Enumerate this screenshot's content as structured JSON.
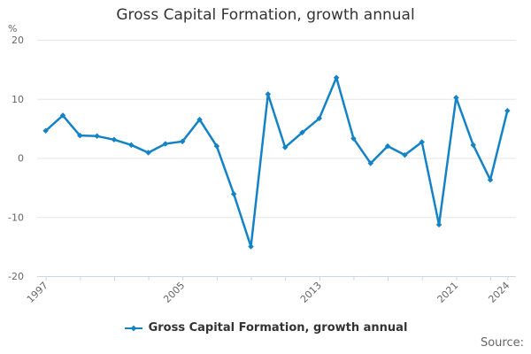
{
  "chart_data": {
    "type": "line",
    "title": "Gross Capital Formation, growth annual",
    "subtitle": "",
    "xlabel": "",
    "ylabel": "%",
    "series_name": "Gross Capital Formation, growth annual",
    "x": [
      1997,
      1998,
      1999,
      2000,
      2001,
      2002,
      2003,
      2004,
      2005,
      2006,
      2007,
      2008,
      2009,
      2010,
      2011,
      2012,
      2013,
      2014,
      2015,
      2016,
      2017,
      2018,
      2019,
      2020,
      2021,
      2022,
      2023,
      2024
    ],
    "values": [
      4.6,
      7.2,
      3.8,
      3.7,
      3.1,
      2.2,
      0.9,
      2.4,
      2.8,
      6.5,
      2.0,
      -6.1,
      -15.0,
      10.8,
      1.8,
      4.3,
      6.7,
      13.6,
      3.3,
      -0.9,
      2.0,
      0.5,
      2.7,
      -11.3,
      10.2,
      2.2,
      -3.7,
      8.0
    ],
    "ylim": [
      -20,
      20
    ],
    "xlim": [
      1996.5,
      2024.5
    ],
    "y_ticks": [
      20,
      10,
      0,
      -10,
      -20
    ],
    "x_ticks": [
      1997,
      1999,
      2001,
      2003,
      2005,
      2007,
      2009,
      2011,
      2013,
      2015,
      2017,
      2019,
      2021,
      2023,
      2024
    ],
    "x_tick_labels": [
      "1997",
      "2005",
      "2013",
      "2021",
      "2024"
    ],
    "grid": true,
    "legend_position": "bottom-center",
    "marker": "diamond"
  },
  "legend": {
    "label": "Gross Capital Formation, growth annual"
  },
  "footer": {
    "source_label": "Source:"
  },
  "colors": {
    "line": "#1483c6",
    "grid_line": "#e6e6e6",
    "axis_line": "#ccd6eb",
    "axis_label": "#666666",
    "title_text": "#333333",
    "legend_text": "#333333",
    "source_text": "#666666"
  }
}
